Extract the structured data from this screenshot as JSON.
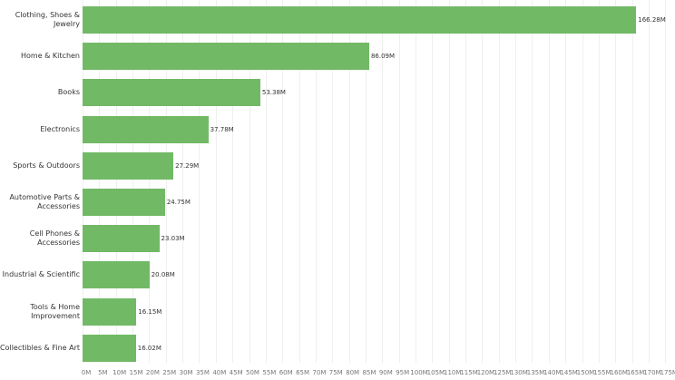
{
  "chart_data": {
    "type": "bar",
    "orientation": "horizontal",
    "title": "",
    "xlabel": "",
    "ylabel": "",
    "categories": [
      "Clothing, Shoes & Jewelry",
      "Home & Kitchen",
      "Books",
      "Electronics",
      "Sports & Outdoors",
      "Automotive Parts & Accessories",
      "Cell Phones & Accessories",
      "Industrial & Scientific",
      "Tools & Home Improvement",
      "Collectibles & Fine Art"
    ],
    "values": [
      166.28,
      86.09,
      53.38,
      37.78,
      27.29,
      24.75,
      23.03,
      20.08,
      16.15,
      16.02
    ],
    "value_labels": [
      "166.28M",
      "86.09M",
      "53.38M",
      "37.78M",
      "27.29M",
      "24.75M",
      "23.03M",
      "20.08M",
      "16.15M",
      "16.02M"
    ],
    "xlim": [
      0,
      175
    ],
    "xticks": [
      "0M",
      "5M",
      "10M",
      "15M",
      "20M",
      "25M",
      "30M",
      "35M",
      "40M",
      "45M",
      "50M",
      "55M",
      "60M",
      "65M",
      "70M",
      "75M",
      "80M",
      "85M",
      "90M",
      "95M",
      "100M",
      "105M",
      "110M",
      "115M",
      "120M",
      "125M",
      "130M",
      "135M",
      "140M",
      "145M",
      "150M",
      "155M",
      "160M",
      "165M",
      "170M",
      "175M"
    ],
    "grid": "vertical",
    "bar_color": "#72b966",
    "legend": null
  }
}
